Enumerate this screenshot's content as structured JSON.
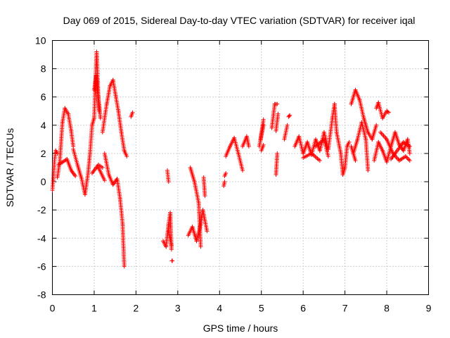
{
  "chart_data": {
    "type": "scatter",
    "title": "Day 069 of 2015, Sidereal Day-to-day VTEC variation (SDTVAR) for receiver iqal",
    "xlabel": "GPS time / hours",
    "ylabel": "SDTVAR / TECUs",
    "xlim": [
      0,
      9
    ],
    "ylim": [
      -8,
      10
    ],
    "xticks": [
      0,
      1,
      2,
      3,
      4,
      5,
      6,
      7,
      8,
      9
    ],
    "yticks": [
      -8,
      -6,
      -4,
      -2,
      0,
      2,
      4,
      6,
      8,
      10
    ],
    "grid": true,
    "marker": "+",
    "color": "#ff0000",
    "series": [
      {
        "name": "SDTVAR",
        "segments": [
          [
            0.0,
            -0.6,
            0.02,
            0.1
          ],
          [
            0.02,
            0.1,
            0.05,
            1.5
          ],
          [
            0.05,
            1.5,
            0.08,
            2.2
          ],
          [
            0.08,
            2.2,
            0.12,
            2.0
          ],
          [
            0.12,
            0.3,
            0.18,
            1.5
          ],
          [
            0.18,
            1.5,
            0.24,
            4.2
          ],
          [
            0.24,
            4.2,
            0.3,
            5.2
          ],
          [
            0.3,
            5.2,
            0.38,
            4.8
          ],
          [
            0.38,
            4.8,
            0.45,
            3.6
          ],
          [
            0.45,
            3.6,
            0.5,
            2.5
          ],
          [
            0.15,
            1.2,
            0.35,
            1.6
          ],
          [
            0.35,
            1.6,
            0.45,
            0.8
          ],
          [
            0.45,
            0.8,
            0.55,
            0.4
          ],
          [
            0.5,
            2.3,
            0.6,
            1.2
          ],
          [
            0.6,
            1.2,
            0.7,
            0.2
          ],
          [
            0.7,
            0.2,
            0.78,
            -0.9
          ],
          [
            0.78,
            -0.9,
            0.85,
            0.5
          ],
          [
            0.85,
            0.5,
            0.9,
            2.0
          ],
          [
            0.9,
            2.0,
            0.95,
            4.0
          ],
          [
            0.95,
            4.0,
            1.0,
            4.5
          ],
          [
            1.0,
            4.5,
            1.03,
            7.0
          ],
          [
            1.03,
            7.0,
            1.06,
            9.2
          ],
          [
            1.06,
            9.2,
            1.1,
            6.0
          ],
          [
            1.1,
            6.0,
            1.15,
            4.5
          ],
          [
            1.0,
            6.5,
            1.05,
            7.5
          ],
          [
            1.05,
            7.5,
            1.12,
            5.0
          ],
          [
            0.95,
            0.6,
            1.1,
            1.2
          ],
          [
            1.1,
            1.2,
            1.2,
            1.0
          ],
          [
            1.2,
            3.5,
            1.3,
            5.5
          ],
          [
            1.3,
            5.5,
            1.38,
            6.8
          ],
          [
            1.38,
            6.8,
            1.45,
            7.2
          ],
          [
            1.45,
            7.2,
            1.52,
            6.0
          ],
          [
            1.52,
            6.0,
            1.58,
            5.0
          ],
          [
            1.58,
            5.0,
            1.65,
            3.5
          ],
          [
            1.65,
            3.5,
            1.72,
            2.2
          ],
          [
            1.72,
            2.2,
            1.78,
            1.8
          ],
          [
            1.25,
            2.0,
            1.35,
            0.5
          ],
          [
            1.35,
            0.5,
            1.45,
            -0.2
          ],
          [
            1.45,
            -0.2,
            1.55,
            0.2
          ],
          [
            1.55,
            0.2,
            1.62,
            -1.2
          ],
          [
            1.62,
            -1.2,
            1.68,
            -3.0
          ],
          [
            1.68,
            -3.0,
            1.72,
            -6.0
          ],
          [
            1.1,
            1.0,
            1.25,
            0.1
          ],
          [
            1.88,
            4.6,
            1.92,
            4.9
          ],
          [
            2.65,
            -4.2,
            2.72,
            -4.6
          ],
          [
            2.72,
            -4.6,
            2.78,
            -3.0
          ],
          [
            2.78,
            -3.0,
            2.82,
            -2.2
          ],
          [
            2.82,
            -2.2,
            2.85,
            -4.8
          ],
          [
            2.75,
            0.8,
            2.78,
            0.0
          ],
          [
            2.78,
            -3.5,
            2.85,
            -4.5
          ],
          [
            2.86,
            -5.6,
            2.87,
            -5.6
          ],
          [
            3.25,
            -3.8,
            3.35,
            -3.2
          ],
          [
            3.35,
            -3.2,
            3.45,
            -4.2
          ],
          [
            3.45,
            -4.2,
            3.55,
            -3.0
          ],
          [
            3.55,
            -3.0,
            3.6,
            -2.0
          ],
          [
            3.6,
            -2.0,
            3.7,
            -3.5
          ],
          [
            3.3,
            1.0,
            3.4,
            0.0
          ],
          [
            3.4,
            0.0,
            3.5,
            -1.5
          ],
          [
            3.5,
            -1.5,
            3.55,
            -4.6
          ],
          [
            3.62,
            0.3,
            3.65,
            -1.0
          ],
          [
            4.1,
            -0.3,
            4.12,
            0.0
          ],
          [
            4.12,
            0.4,
            4.15,
            0.6
          ],
          [
            4.15,
            1.8,
            4.25,
            2.5
          ],
          [
            4.25,
            2.5,
            4.35,
            3.1
          ],
          [
            4.35,
            3.1,
            4.45,
            2.0
          ],
          [
            4.45,
            2.0,
            4.55,
            0.8
          ],
          [
            4.55,
            2.5,
            4.65,
            3.2
          ],
          [
            4.65,
            3.2,
            4.7,
            2.5
          ],
          [
            4.95,
            2.5,
            5.05,
            4.0
          ],
          [
            4.98,
            3.0,
            5.05,
            4.4
          ],
          [
            5.0,
            2.2,
            5.05,
            2.6
          ],
          [
            5.25,
            3.8,
            5.32,
            5.5
          ],
          [
            5.32,
            5.5,
            5.38,
            5.5
          ],
          [
            5.35,
            0.5,
            5.38,
            2.0
          ],
          [
            5.35,
            3.6,
            5.4,
            4.8
          ],
          [
            5.55,
            3.0,
            5.62,
            4.0
          ],
          [
            5.65,
            4.6,
            5.68,
            4.7
          ],
          [
            5.8,
            2.5,
            5.9,
            3.2
          ],
          [
            5.9,
            3.2,
            6.0,
            2.0
          ],
          [
            6.0,
            2.0,
            6.1,
            2.8
          ],
          [
            6.1,
            2.8,
            6.2,
            1.9
          ],
          [
            6.2,
            1.9,
            6.3,
            3.0
          ],
          [
            6.3,
            3.0,
            6.4,
            2.2
          ],
          [
            6.4,
            2.2,
            6.5,
            3.5
          ],
          [
            6.5,
            3.5,
            6.6,
            2.3
          ],
          [
            6.6,
            2.3,
            6.7,
            4.5
          ],
          [
            6.7,
            4.5,
            6.75,
            5.5
          ],
          [
            6.75,
            5.5,
            6.8,
            3.5
          ],
          [
            6.8,
            3.5,
            6.9,
            2.0
          ],
          [
            6.9,
            2.0,
            6.95,
            0.5
          ],
          [
            6.95,
            0.5,
            7.0,
            1.0
          ],
          [
            7.0,
            1.0,
            7.05,
            2.5
          ],
          [
            7.05,
            2.5,
            7.1,
            2.8
          ],
          [
            6.0,
            1.7,
            6.2,
            2.0
          ],
          [
            6.2,
            2.0,
            6.4,
            1.5
          ],
          [
            6.3,
            2.5,
            6.5,
            3.0
          ],
          [
            6.5,
            3.0,
            6.6,
            1.8
          ],
          [
            7.15,
            5.5,
            7.25,
            6.5
          ],
          [
            7.25,
            6.5,
            7.35,
            5.8
          ],
          [
            7.35,
            5.8,
            7.45,
            4.5
          ],
          [
            7.45,
            4.5,
            7.55,
            3.5
          ],
          [
            7.55,
            3.5,
            7.65,
            3.0
          ],
          [
            7.65,
            3.0,
            7.75,
            4.0
          ],
          [
            7.2,
            2.0,
            7.3,
            3.0
          ],
          [
            7.3,
            3.0,
            7.4,
            4.2
          ],
          [
            7.4,
            4.2,
            7.5,
            3.0
          ],
          [
            7.5,
            3.0,
            7.55,
            0.8
          ],
          [
            7.15,
            2.5,
            7.25,
            1.5
          ],
          [
            7.75,
            5.2,
            7.8,
            5.6
          ],
          [
            7.8,
            5.6,
            7.9,
            4.5
          ],
          [
            7.9,
            4.5,
            8.0,
            5.0
          ],
          [
            8.0,
            5.0,
            8.05,
            4.9
          ],
          [
            7.7,
            1.5,
            7.8,
            2.8
          ],
          [
            7.8,
            2.8,
            7.9,
            2.2
          ],
          [
            7.9,
            2.2,
            8.0,
            1.4
          ],
          [
            8.0,
            1.4,
            8.1,
            2.5
          ],
          [
            8.1,
            2.5,
            8.2,
            3.5
          ],
          [
            8.2,
            3.5,
            8.3,
            2.6
          ],
          [
            8.3,
            2.6,
            8.4,
            2.2
          ],
          [
            8.4,
            2.2,
            8.5,
            3.0
          ],
          [
            8.5,
            3.0,
            8.55,
            2.0
          ],
          [
            7.85,
            3.5,
            8.0,
            3.0
          ],
          [
            8.0,
            3.0,
            8.15,
            2.0
          ],
          [
            8.15,
            2.0,
            8.3,
            1.5
          ],
          [
            8.3,
            1.5,
            8.45,
            1.8
          ],
          [
            8.45,
            1.8,
            8.55,
            1.5
          ],
          [
            8.1,
            1.6,
            8.4,
            2.8
          ],
          [
            8.4,
            2.8,
            8.55,
            2.5
          ]
        ]
      }
    ]
  }
}
